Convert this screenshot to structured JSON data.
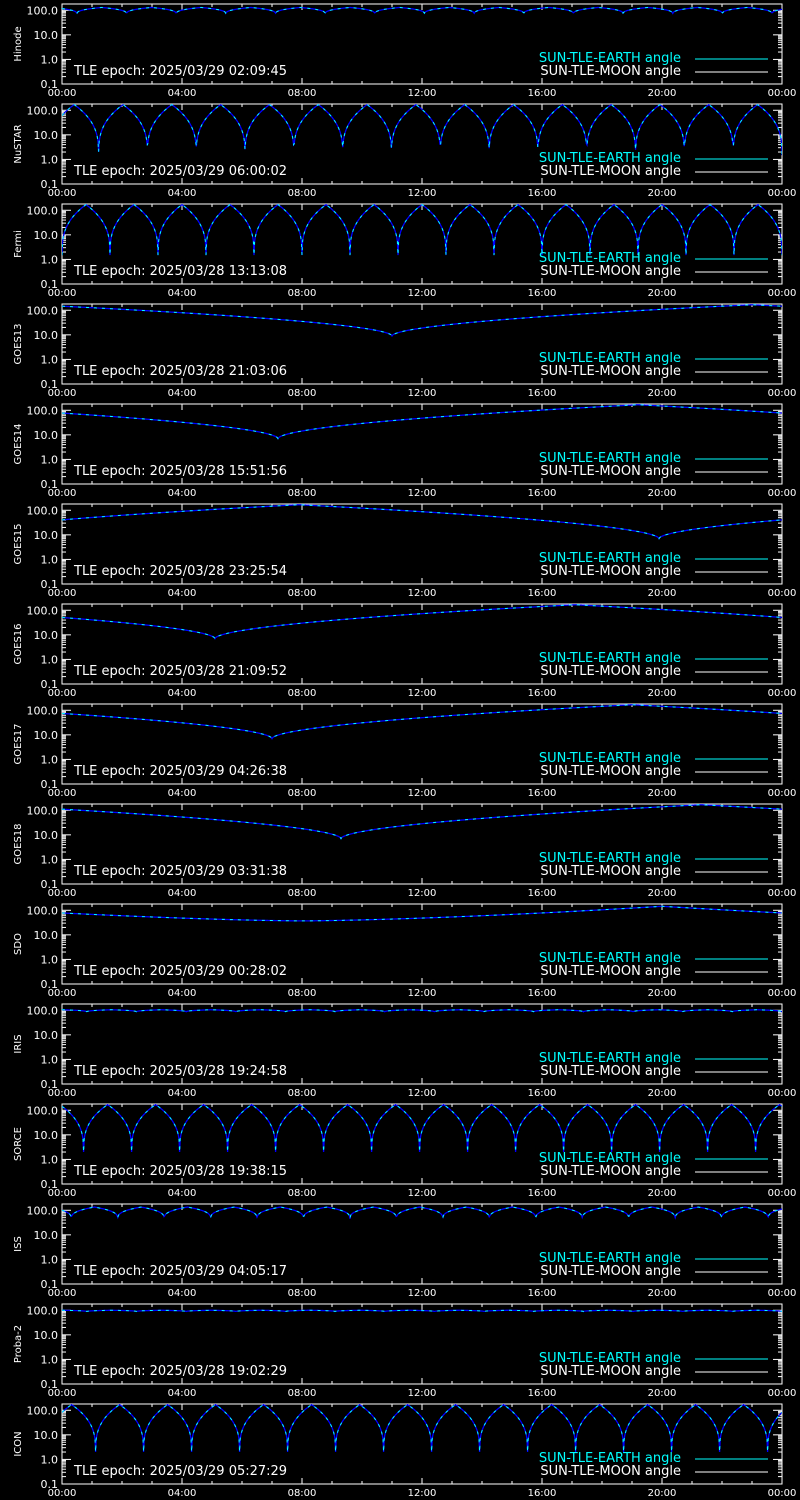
{
  "x_ticks": [
    "00:00",
    "04:00",
    "08:00",
    "12:00",
    "16:00",
    "20:00",
    "00:00"
  ],
  "y_ticks": [
    "100.0",
    "10.0",
    "1.0",
    "0.1"
  ],
  "legend": {
    "earth": "SUN-TLE-EARTH angle",
    "moon": "SUN-TLE-MOON angle"
  },
  "colors": {
    "background": "#000000",
    "axes": "#ffffff",
    "earth": "#00ffff",
    "moon": "#ffffff",
    "overlay": "#0000ff"
  },
  "chart_data": [
    {
      "type": "line",
      "ylabel": "Hinode",
      "epoch": "TLE epoch: 2025/03/29 02:09:45",
      "y_scale": "log",
      "ylim": [
        0.1,
        180
      ],
      "x_range_hours": [
        0,
        24
      ],
      "series": [
        {
          "name": "SUN-TLE-EARTH angle",
          "pattern": "oscillating",
          "min": 70,
          "max": 130,
          "cycles": 14.5,
          "phase": 0.2
        }
      ]
    },
    {
      "type": "line",
      "ylabel": "NuSTAR",
      "epoch": "TLE epoch: 2025/03/29 06:00:02",
      "y_scale": "log",
      "ylim": [
        0.1,
        180
      ],
      "x_range_hours": [
        0,
        24
      ],
      "series": [
        {
          "name": "SUN-TLE-EARTH angle",
          "pattern": "oscillating",
          "min": 1.5,
          "max": 170,
          "cycles": 14.75,
          "phase": 0.75
        }
      ]
    },
    {
      "type": "line",
      "ylabel": "Fermi",
      "epoch": "TLE epoch: 2025/03/28 13:13:08",
      "y_scale": "log",
      "ylim": [
        0.1,
        180
      ],
      "x_range_hours": [
        0,
        24
      ],
      "series": [
        {
          "name": "SUN-TLE-EARTH angle",
          "pattern": "oscillating",
          "min": 1.5,
          "max": 170,
          "cycles": 15.0,
          "phase": 0.5
        }
      ]
    },
    {
      "type": "line",
      "ylabel": "GOES13",
      "epoch": "TLE epoch: 2025/03/28 21:03:06",
      "y_scale": "log",
      "ylim": [
        0.1,
        180
      ],
      "x_range_hours": [
        0,
        24
      ],
      "series": [
        {
          "name": "SUN-TLE-EARTH angle",
          "pattern": "daily_dip",
          "min": 9,
          "max": 168,
          "dip_hour": 11.0
        }
      ]
    },
    {
      "type": "line",
      "ylabel": "GOES14",
      "epoch": "TLE epoch: 2025/03/28 15:51:56",
      "y_scale": "log",
      "ylim": [
        0.1,
        180
      ],
      "x_range_hours": [
        0,
        24
      ],
      "series": [
        {
          "name": "SUN-TLE-EARTH angle",
          "pattern": "daily_dip",
          "min": 7,
          "max": 168,
          "dip_hour": 7.2
        }
      ]
    },
    {
      "type": "line",
      "ylabel": "GOES15",
      "epoch": "TLE epoch: 2025/03/28 23:25:54",
      "y_scale": "log",
      "ylim": [
        0.1,
        180
      ],
      "x_range_hours": [
        0,
        24
      ],
      "series": [
        {
          "name": "SUN-TLE-EARTH angle",
          "pattern": "daily_dip",
          "min": 7,
          "max": 168,
          "dip_hour": 19.9
        }
      ]
    },
    {
      "type": "line",
      "ylabel": "GOES16",
      "epoch": "TLE epoch: 2025/03/28 21:09:52",
      "y_scale": "log",
      "ylim": [
        0.1,
        180
      ],
      "x_range_hours": [
        0,
        24
      ],
      "series": [
        {
          "name": "SUN-TLE-EARTH angle",
          "pattern": "daily_dip",
          "min": 7,
          "max": 168,
          "dip_hour": 5.1
        }
      ]
    },
    {
      "type": "line",
      "ylabel": "GOES17",
      "epoch": "TLE epoch: 2025/03/29 04:26:38",
      "y_scale": "log",
      "ylim": [
        0.1,
        180
      ],
      "x_range_hours": [
        0,
        24
      ],
      "series": [
        {
          "name": "SUN-TLE-EARTH angle",
          "pattern": "daily_dip",
          "min": 7,
          "max": 168,
          "dip_hour": 7.0
        }
      ]
    },
    {
      "type": "line",
      "ylabel": "GOES18",
      "epoch": "TLE epoch: 2025/03/29 03:31:38",
      "y_scale": "log",
      "ylim": [
        0.1,
        180
      ],
      "x_range_hours": [
        0,
        24
      ],
      "series": [
        {
          "name": "SUN-TLE-EARTH angle",
          "pattern": "daily_dip",
          "min": 7,
          "max": 168,
          "dip_hour": 9.3
        }
      ]
    },
    {
      "type": "line",
      "ylabel": "SDO",
      "epoch": "TLE epoch: 2025/03/29 00:28:02",
      "y_scale": "log",
      "ylim": [
        0.1,
        180
      ],
      "x_range_hours": [
        0,
        24
      ],
      "series": [
        {
          "name": "SUN-TLE-EARTH angle",
          "pattern": "daily_dip",
          "min": 37,
          "max": 145,
          "dip_hour": 8.0,
          "smooth": true
        }
      ]
    },
    {
      "type": "line",
      "ylabel": "IRIS",
      "epoch": "TLE epoch: 2025/03/28 19:24:58",
      "y_scale": "log",
      "ylim": [
        0.1,
        180
      ],
      "x_range_hours": [
        0,
        24
      ],
      "series": [
        {
          "name": "SUN-TLE-EARTH angle",
          "pattern": "oscillating",
          "min": 85,
          "max": 105,
          "cycles": 14.5,
          "phase": 0.0
        }
      ]
    },
    {
      "type": "line",
      "ylabel": "SORCE",
      "epoch": "TLE epoch: 2025/03/28 19:38:15",
      "y_scale": "log",
      "ylim": [
        0.1,
        180
      ],
      "x_range_hours": [
        0,
        24
      ],
      "series": [
        {
          "name": "SUN-TLE-EARTH angle",
          "pattern": "oscillating",
          "min": 2,
          "max": 170,
          "cycles": 15.0,
          "phase": 0.05
        }
      ]
    },
    {
      "type": "line",
      "ylabel": "ISS",
      "epoch": "TLE epoch: 2025/03/29 04:05:17",
      "y_scale": "log",
      "ylim": [
        0.1,
        180
      ],
      "x_range_hours": [
        0,
        24
      ],
      "series": [
        {
          "name": "SUN-TLE-EARTH angle",
          "pattern": "oscillating",
          "min": 45,
          "max": 135,
          "cycles": 15.5,
          "phase": 0.3
        }
      ]
    },
    {
      "type": "line",
      "ylabel": "Proba-2",
      "epoch": "TLE epoch: 2025/03/28 19:02:29",
      "y_scale": "log",
      "ylim": [
        0.1,
        180
      ],
      "x_range_hours": [
        0,
        24
      ],
      "series": [
        {
          "name": "SUN-TLE-EARTH angle",
          "pattern": "oscillating",
          "min": 88,
          "max": 100,
          "cycles": 14.5,
          "phase": 0.0
        }
      ]
    },
    {
      "type": "line",
      "ylabel": "ICON",
      "epoch": "TLE epoch: 2025/03/29 05:27:29",
      "y_scale": "log",
      "ylim": [
        0.1,
        180
      ],
      "x_range_hours": [
        0,
        24
      ],
      "series": [
        {
          "name": "SUN-TLE-EARTH angle",
          "pattern": "oscillating",
          "min": 2,
          "max": 170,
          "cycles": 15.0,
          "phase": 0.8
        }
      ]
    }
  ]
}
